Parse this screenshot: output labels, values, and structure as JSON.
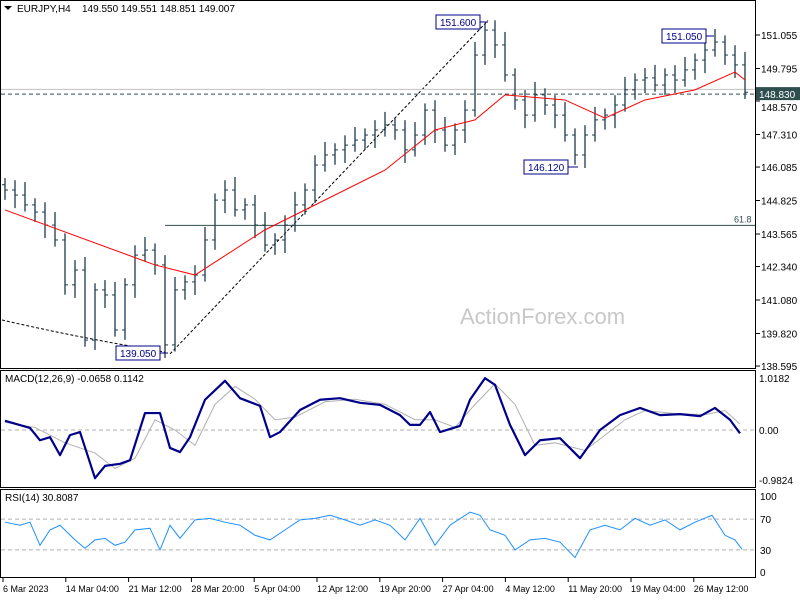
{
  "header": {
    "symbol": "EURJPY,H4",
    "ohlc": "149.550 149.551 148.851 149.007"
  },
  "watermark": "ActionForex.com",
  "colors": {
    "bars": "#1e3a4a",
    "ma": "#ff0000",
    "macd": "#00008b",
    "signal": "#b0b0b0",
    "rsi": "#1e90ff",
    "current_price_bg": "#2f4f4f"
  },
  "chart_data": [
    {
      "type": "ohlc",
      "title": "EURJPY,H4",
      "x_tick_labels": [
        "6 Mar 2023",
        "14 Mar 04:00",
        "21 Mar 12:00",
        "28 Mar 20:00",
        "5 Apr 04:00",
        "12 Apr 12:00",
        "19 Apr 20:00",
        "27 Apr 04:00",
        "4 May 12:00",
        "11 May 20:00",
        "19 May 04:00",
        "26 May 12:00"
      ],
      "y_tick_labels": [
        "151.055",
        "149.795",
        "148.570",
        "147.310",
        "146.085",
        "144.825",
        "143.565",
        "142.340",
        "141.080",
        "139.820",
        "138.595"
      ],
      "ylim": [
        138.595,
        151.055
      ],
      "closes": [
        145.22,
        145.03,
        144.66,
        144.39,
        143.9,
        143.34,
        141.65,
        142.21,
        139.57,
        141.46,
        141.27,
        139.95,
        141.65,
        142.77,
        142.96,
        142.4,
        139.39,
        141.46,
        141.76,
        142.02,
        143.34,
        144.84,
        145.22,
        144.47,
        144.66,
        143.9,
        143.15,
        143.34,
        143.9,
        144.66,
        145.22,
        146.16,
        146.54,
        146.73,
        146.91,
        147.1,
        147.29,
        147.48,
        147.67,
        147.48,
        146.73,
        147.29,
        148.23,
        147.48,
        146.91,
        147.48,
        148.23,
        150.3,
        151.24,
        150.68,
        149.55,
        148.61,
        148.04,
        148.8,
        148.42,
        148.04,
        147.29,
        146.54,
        147.29,
        147.86,
        148.04,
        148.42,
        148.99,
        149.36,
        149.44,
        149.17,
        149.55,
        149.36,
        149.74,
        150.11,
        150.49,
        150.79,
        150.3,
        149.93,
        148.9
      ],
      "moving_average": [
        [
          0,
          144.47
        ],
        [
          15,
          142.4
        ],
        [
          19,
          142.02
        ],
        [
          26,
          143.72
        ],
        [
          38,
          145.97
        ],
        [
          43,
          147.48
        ],
        [
          47,
          147.86
        ],
        [
          50,
          148.8
        ],
        [
          56,
          148.61
        ],
        [
          60,
          147.93
        ],
        [
          64,
          148.61
        ],
        [
          69,
          148.99
        ],
        [
          73,
          149.66
        ],
        [
          74,
          149.36
        ]
      ],
      "annotations": {
        "high_label": "151.600",
        "high_value": 151.6,
        "recent_high_label": "151.050",
        "recent_high_value": 151.05,
        "low_label": "146.120",
        "low_value": 146.12,
        "major_low_label": "139.050",
        "major_low_value": 139.05,
        "fib_label": "61.8",
        "fib_value": 143.89,
        "current_price_label": "148.830",
        "current_price": 148.83
      }
    },
    {
      "type": "line",
      "title": "MACD(12,26,9) -0.0658 0.1142",
      "y_tick_labels": [
        "1.0182",
        "0.00",
        "-0.9824"
      ],
      "ylim": [
        -0.9824,
        1.0182
      ],
      "series": [
        {
          "name": "MACD",
          "points": [
            [
              0,
              0.18
            ],
            [
              2.5,
              0.04
            ],
            [
              3.5,
              -0.2
            ],
            [
              4.5,
              -0.14
            ],
            [
              5.5,
              -0.49
            ],
            [
              6.5,
              -0.1
            ],
            [
              7.5,
              -0.04
            ],
            [
              9,
              -0.94
            ],
            [
              10,
              -0.7
            ],
            [
              11.5,
              -0.66
            ],
            [
              12.5,
              -0.59
            ],
            [
              14,
              0.33
            ],
            [
              15.5,
              0.33
            ],
            [
              16.5,
              -0.35
            ],
            [
              17.5,
              -0.43
            ],
            [
              18.5,
              -0.14
            ],
            [
              20,
              0.59
            ],
            [
              22,
              0.96
            ],
            [
              23.5,
              0.62
            ],
            [
              25.5,
              0.47
            ],
            [
              26.5,
              -0.14
            ],
            [
              27.5,
              -0.04
            ],
            [
              29.5,
              0.39
            ],
            [
              31.5,
              0.59
            ],
            [
              33.5,
              0.62
            ],
            [
              35.5,
              0.53
            ],
            [
              37.5,
              0.49
            ],
            [
              39.5,
              0.29
            ],
            [
              40.5,
              0.1
            ],
            [
              41.5,
              0.1
            ],
            [
              42.5,
              0.35
            ],
            [
              43.5,
              -0.04
            ],
            [
              45.5,
              0.08
            ],
            [
              46.5,
              0.59
            ],
            [
              48,
              1.01
            ],
            [
              49,
              0.88
            ],
            [
              50.5,
              0.1
            ],
            [
              52,
              -0.49
            ],
            [
              53.5,
              -0.2
            ],
            [
              55.5,
              -0.16
            ],
            [
              57.5,
              -0.55
            ],
            [
              59.5,
              0.0
            ],
            [
              61.5,
              0.29
            ],
            [
              63.5,
              0.43
            ],
            [
              65.5,
              0.29
            ],
            [
              67.5,
              0.31
            ],
            [
              69.5,
              0.27
            ],
            [
              71,
              0.43
            ],
            [
              72.5,
              0.2
            ],
            [
              73.5,
              -0.0658
            ]
          ]
        },
        {
          "name": "Signal",
          "points": [
            [
              0,
              0.15
            ],
            [
              3,
              0.05
            ],
            [
              6,
              -0.25
            ],
            [
              9,
              -0.45
            ],
            [
              11,
              -0.75
            ],
            [
              13,
              -0.55
            ],
            [
              15,
              0.2
            ],
            [
              17,
              0.0
            ],
            [
              19,
              -0.3
            ],
            [
              21,
              0.5
            ],
            [
              23,
              0.85
            ],
            [
              25,
              0.6
            ],
            [
              27,
              0.2
            ],
            [
              29,
              0.25
            ],
            [
              32,
              0.55
            ],
            [
              35,
              0.6
            ],
            [
              38,
              0.5
            ],
            [
              41,
              0.2
            ],
            [
              43,
              0.2
            ],
            [
              45,
              0.05
            ],
            [
              47,
              0.5
            ],
            [
              49,
              0.9
            ],
            [
              51,
              0.5
            ],
            [
              53,
              -0.3
            ],
            [
              55,
              -0.25
            ],
            [
              58,
              -0.4
            ],
            [
              60,
              -0.1
            ],
            [
              62,
              0.2
            ],
            [
              64,
              0.38
            ],
            [
              67,
              0.32
            ],
            [
              70,
              0.3
            ],
            [
              72,
              0.38
            ],
            [
              73.5,
              0.1142
            ]
          ]
        }
      ],
      "zero_line": true
    },
    {
      "type": "line",
      "title": "RSI(14) 30.8087",
      "y_tick_labels": [
        "100",
        "70",
        "30",
        "0"
      ],
      "ylim": [
        0,
        100
      ],
      "levels": [
        70,
        30
      ],
      "series": [
        {
          "name": "RSI",
          "points": [
            [
              0,
              66
            ],
            [
              1.5,
              62
            ],
            [
              2.5,
              66
            ],
            [
              3.5,
              36
            ],
            [
              4.5,
              56
            ],
            [
              5.5,
              62
            ],
            [
              7,
              43
            ],
            [
              8,
              32
            ],
            [
              9,
              43
            ],
            [
              10,
              45
            ],
            [
              11,
              36
            ],
            [
              12,
              40
            ],
            [
              13,
              56
            ],
            [
              14.5,
              58
            ],
            [
              15.5,
              30
            ],
            [
              16.5,
              62
            ],
            [
              17.5,
              45
            ],
            [
              19,
              69
            ],
            [
              20.5,
              71
            ],
            [
              22,
              66
            ],
            [
              23.5,
              62
            ],
            [
              25,
              49
            ],
            [
              26.5,
              43
            ],
            [
              28,
              56
            ],
            [
              29.5,
              69
            ],
            [
              31,
              71
            ],
            [
              32.5,
              75
            ],
            [
              34,
              69
            ],
            [
              35.5,
              62
            ],
            [
              37,
              69
            ],
            [
              38.5,
              62
            ],
            [
              40,
              43
            ],
            [
              41.5,
              71
            ],
            [
              43,
              36
            ],
            [
              44.5,
              62
            ],
            [
              46.5,
              79
            ],
            [
              47.5,
              75
            ],
            [
              48.5,
              56
            ],
            [
              50,
              49
            ],
            [
              51,
              30
            ],
            [
              52.5,
              43
            ],
            [
              54,
              45
            ],
            [
              55.5,
              40
            ],
            [
              57,
              20
            ],
            [
              58.5,
              56
            ],
            [
              60,
              62
            ],
            [
              61.5,
              56
            ],
            [
              63,
              71
            ],
            [
              64.5,
              62
            ],
            [
              66,
              69
            ],
            [
              67.5,
              56
            ],
            [
              69,
              66
            ],
            [
              70.7,
              75
            ],
            [
              72,
              49
            ],
            [
              73,
              43
            ],
            [
              73.7,
              30.8
            ]
          ]
        }
      ]
    }
  ]
}
